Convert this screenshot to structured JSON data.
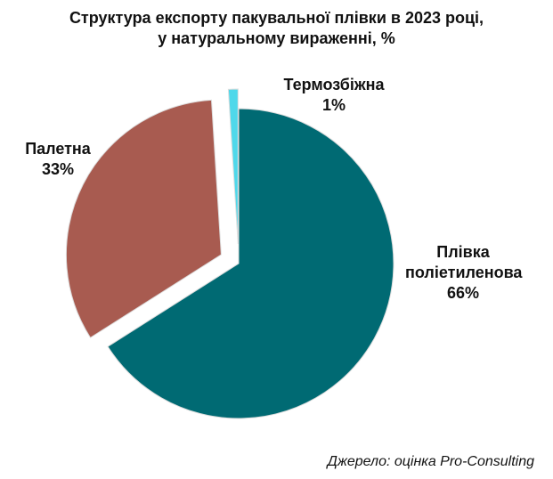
{
  "chart_data": {
    "type": "pie",
    "title": [
      "Структура експорту пакувальної плівки в 2023 році,",
      "у натуральному вираженні, %"
    ],
    "categories": [
      "Плівка поліетиленова",
      "Палетна",
      "Термозбіжна"
    ],
    "values": [
      66,
      33,
      1
    ],
    "value_labels": [
      "66%",
      "33%",
      "1%"
    ],
    "colors": [
      "#006a73",
      "#a85b50",
      "#4fd8ea"
    ],
    "source": "Джерело: оцінка Pro-Consulting"
  }
}
